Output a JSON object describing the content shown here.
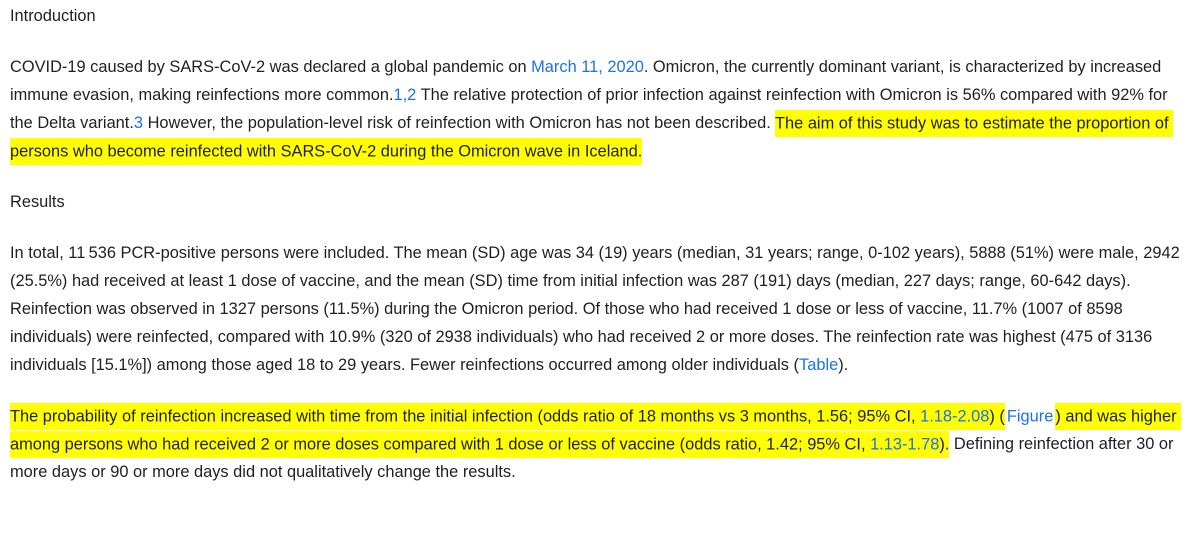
{
  "colors": {
    "text": "#1f1f1f",
    "link": "#1a73e8",
    "highlight": "#ffff00",
    "background": "#ffffff"
  },
  "article": {
    "sections": [
      {
        "heading": "Introduction",
        "paragraphs": [
          [
            {
              "style": "plain",
              "text": "COVID-19 caused by SARS-CoV-2 was declared a global pandemic on "
            },
            {
              "style": "link",
              "name": "date-link-march-11-2020",
              "text": "March 11, 2020"
            },
            {
              "style": "plain",
              "text": ". Omicron, the currently dominant variant, is characterized by increased immune evasion, making reinfections more common."
            },
            {
              "style": "link",
              "name": "reference-link-1-2",
              "text": "1,2"
            },
            {
              "style": "plain",
              "text": " The relative protection of prior infection against reinfection with Omicron is 56% compared with 92% for the Delta variant."
            },
            {
              "style": "link",
              "name": "reference-link-3",
              "text": "3"
            },
            {
              "style": "plain",
              "text": " However, the population-level risk of reinfection with Omicron has not been described. "
            },
            {
              "style": "hl",
              "text": "The aim of this study was to estimate the proportion of persons who become reinfected with SARS-CoV-2 during the Omicron wave in Iceland."
            }
          ]
        ]
      },
      {
        "heading": "Results",
        "paragraphs": [
          [
            {
              "style": "plain",
              "text": "In total, 11 536 PCR-positive persons were included. The mean (SD) age was 34 (19) years (median, 31 years; range, 0-102 years), 5888 (51%) were male, 2942 (25.5%) had received at least 1 dose of vaccine, and the mean (SD) time from initial infection was 287 (191) days (median, 227 days; range, 60-642 days). Reinfection was observed in 1327 persons (11.5%) during the Omicron period. Of those who had received 1 dose or less of vaccine, 11.7% (1007 of 8598 individuals) were reinfected, compared with 10.9% (320 of 2938 individuals) who had received 2 or more doses. The reinfection rate was highest (475 of 3136 individuals [15.1%]) among those aged 18 to 29 years. Fewer reinfections occurred among older individuals ("
            },
            {
              "style": "link",
              "name": "table-link",
              "text": "Table"
            },
            {
              "style": "plain",
              "text": ")."
            }
          ],
          [
            {
              "style": "hl",
              "text": "The probability of reinfection increased with time from the initial infection (odds ratio of 18 months vs 3 months, 1.56; 95% CI, "
            },
            {
              "style": "hl-link",
              "name": "ci-link-1-18-2-08",
              "text": "1.18-2.08"
            },
            {
              "style": "hl",
              "text": ") ("
            },
            {
              "style": "hl-link-white",
              "name": "figure-link",
              "text": "Figure"
            },
            {
              "style": "hl",
              "text": ") and was higher among persons who had received 2 or more doses compared with 1 dose or less of vaccine (odds ratio, 1.42; 95% CI, "
            },
            {
              "style": "hl-link",
              "name": "ci-link-1-13-1-78",
              "text": "1.13-1.78"
            },
            {
              "style": "hl",
              "text": ")."
            },
            {
              "style": "plain",
              "text": " Defining reinfection after 30 or more days or 90 or more days did not qualitatively change the results."
            }
          ]
        ]
      }
    ]
  }
}
